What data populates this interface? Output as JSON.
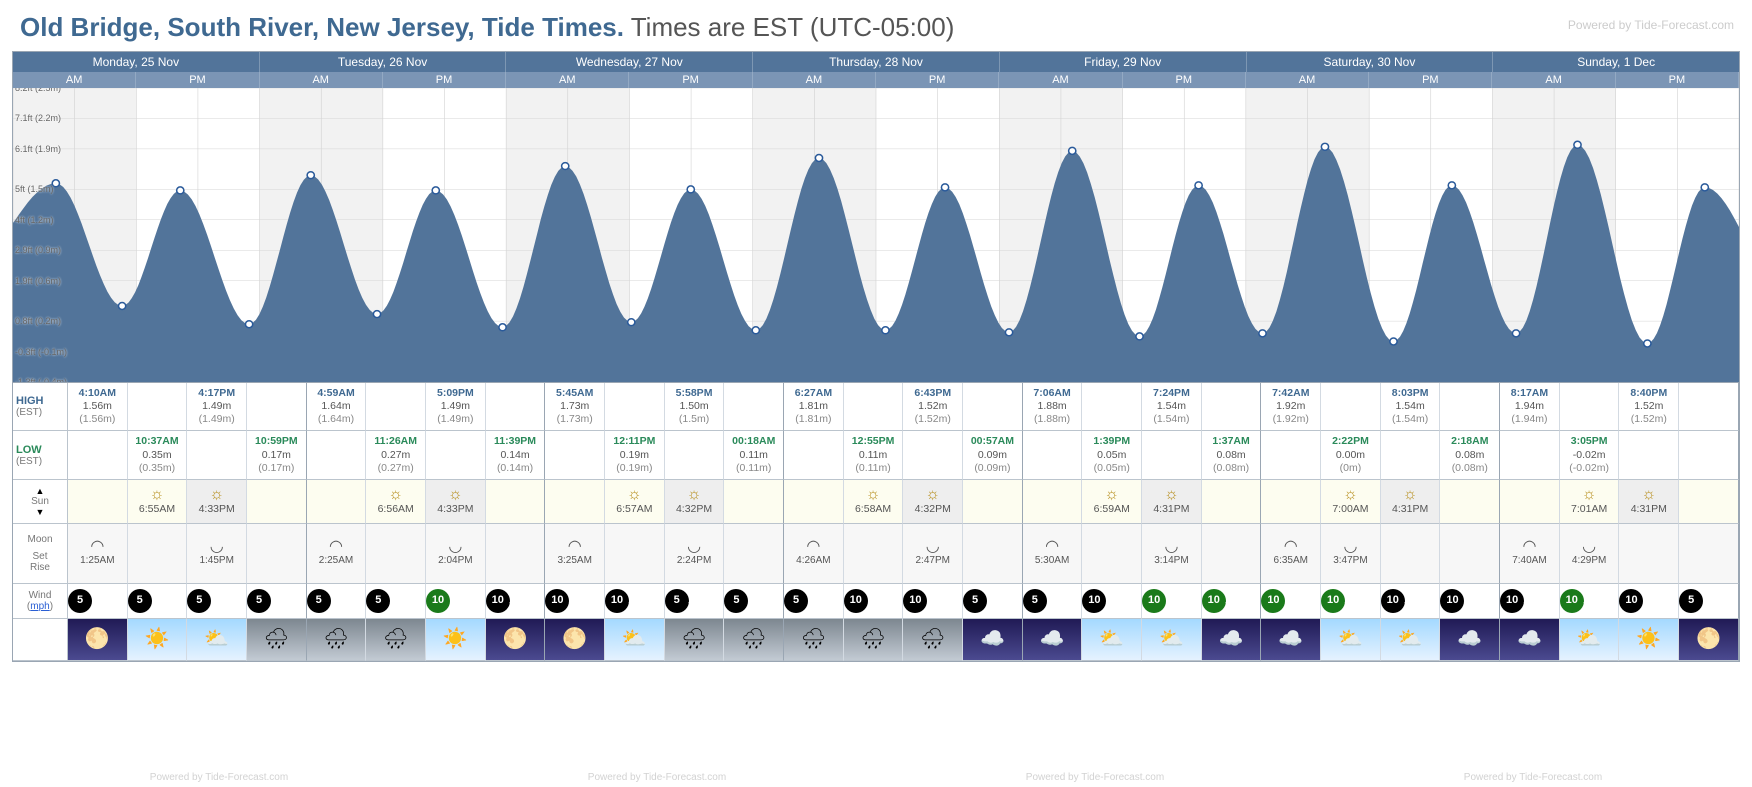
{
  "title": {
    "main": "Old Bridge, South River, New Jersey, Tide Times.",
    "sub": "Times are EST (UTC-05:00)"
  },
  "watermark": "Powered by Tide-Forecast.com",
  "days": [
    {
      "label": "Monday, 25 Nov"
    },
    {
      "label": "Tuesday, 26 Nov"
    },
    {
      "label": "Wednesday, 27 Nov"
    },
    {
      "label": "Thursday, 28 Nov"
    },
    {
      "label": "Friday, 29 Nov"
    },
    {
      "label": "Saturday, 30 Nov"
    },
    {
      "label": "Sunday, 1 Dec"
    }
  ],
  "ampm": [
    "AM",
    "PM"
  ],
  "yAxis": [
    {
      "ft": "8.2ft",
      "m": "(2.5m)",
      "v": 2.5
    },
    {
      "ft": "7.1ft",
      "m": "(2.2m)",
      "v": 2.2
    },
    {
      "ft": "6.1ft",
      "m": "(1.9m)",
      "v": 1.9
    },
    {
      "ft": "5ft",
      "m": "(1.5m)",
      "v": 1.5
    },
    {
      "ft": "4ft",
      "m": "(1.2m)",
      "v": 1.2
    },
    {
      "ft": "2.9ft",
      "m": "(0.9m)",
      "v": 0.9
    },
    {
      "ft": "1.9ft",
      "m": "(0.6m)",
      "v": 0.6
    },
    {
      "ft": "0.8ft",
      "m": "(0.2m)",
      "v": 0.2
    },
    {
      "ft": "-0.3ft",
      "m": "(-0.1m)",
      "v": -0.1
    },
    {
      "ft": "-1.3ft",
      "m": "(-0.4m)",
      "v": -0.4
    }
  ],
  "chart": {
    "yMin": -0.4,
    "yMax": 2.5,
    "curveColor": "#52749a",
    "dotColor": "#ffffff",
    "dotStroke": "#2a5a9a",
    "amBand": "#e5e5e5"
  },
  "tidePoints": [
    {
      "day": 0,
      "hr": 4.17,
      "m": 1.56,
      "type": "H"
    },
    {
      "day": 0,
      "hr": 10.62,
      "m": 0.35,
      "type": "L"
    },
    {
      "day": 0,
      "hr": 16.28,
      "m": 1.49,
      "type": "H"
    },
    {
      "day": 0,
      "hr": 22.98,
      "m": 0.17,
      "type": "L"
    },
    {
      "day": 1,
      "hr": 4.98,
      "m": 1.64,
      "type": "H"
    },
    {
      "day": 1,
      "hr": 11.43,
      "m": 0.27,
      "type": "L"
    },
    {
      "day": 1,
      "hr": 17.15,
      "m": 1.49,
      "type": "H"
    },
    {
      "day": 1,
      "hr": 23.65,
      "m": 0.14,
      "type": "L"
    },
    {
      "day": 2,
      "hr": 5.75,
      "m": 1.73,
      "type": "H"
    },
    {
      "day": 2,
      "hr": 12.18,
      "m": 0.19,
      "type": "L"
    },
    {
      "day": 2,
      "hr": 17.97,
      "m": 1.5,
      "type": "H"
    },
    {
      "day": 3,
      "hr": 0.3,
      "m": 0.11,
      "type": "L"
    },
    {
      "day": 3,
      "hr": 6.45,
      "m": 1.81,
      "type": "H"
    },
    {
      "day": 3,
      "hr": 12.92,
      "m": 0.11,
      "type": "L"
    },
    {
      "day": 3,
      "hr": 18.72,
      "m": 1.52,
      "type": "H"
    },
    {
      "day": 4,
      "hr": 0.95,
      "m": 0.09,
      "type": "L"
    },
    {
      "day": 4,
      "hr": 7.1,
      "m": 1.88,
      "type": "H"
    },
    {
      "day": 4,
      "hr": 13.65,
      "m": 0.05,
      "type": "L"
    },
    {
      "day": 4,
      "hr": 19.4,
      "m": 1.54,
      "type": "H"
    },
    {
      "day": 5,
      "hr": 1.62,
      "m": 0.08,
      "type": "L"
    },
    {
      "day": 5,
      "hr": 7.7,
      "m": 1.92,
      "type": "H"
    },
    {
      "day": 5,
      "hr": 14.37,
      "m": 0.0,
      "type": "L"
    },
    {
      "day": 5,
      "hr": 20.05,
      "m": 1.54,
      "type": "H"
    },
    {
      "day": 6,
      "hr": 2.3,
      "m": 0.08,
      "type": "L"
    },
    {
      "day": 6,
      "hr": 8.28,
      "m": 1.94,
      "type": "H"
    },
    {
      "day": 6,
      "hr": 15.08,
      "m": -0.02,
      "type": "L"
    },
    {
      "day": 6,
      "hr": 20.67,
      "m": 1.52,
      "type": "H"
    }
  ],
  "rowLabels": {
    "high": "HIGH",
    "low": "LOW",
    "tz": "(EST)",
    "sun": "Sun",
    "moon": "Moon",
    "moonSet": "Set",
    "moonRise": "Rise",
    "wind": "Wind",
    "windUnit": "mph"
  },
  "highLow": {
    "high": [
      [
        "4:10AM",
        "1.56m",
        "(1.56m)"
      ],
      null,
      [
        "4:17PM",
        "1.49m",
        "(1.49m)"
      ],
      null,
      [
        "4:59AM",
        "1.64m",
        "(1.64m)"
      ],
      null,
      [
        "5:09PM",
        "1.49m",
        "(1.49m)"
      ],
      null,
      [
        "5:45AM",
        "1.73m",
        "(1.73m)"
      ],
      null,
      [
        "5:58PM",
        "1.50m",
        "(1.5m)"
      ],
      null,
      [
        "6:27AM",
        "1.81m",
        "(1.81m)"
      ],
      null,
      [
        "6:43PM",
        "1.52m",
        "(1.52m)"
      ],
      null,
      [
        "7:06AM",
        "1.88m",
        "(1.88m)"
      ],
      null,
      [
        "7:24PM",
        "1.54m",
        "(1.54m)"
      ],
      null,
      [
        "7:42AM",
        "1.92m",
        "(1.92m)"
      ],
      null,
      [
        "8:03PM",
        "1.54m",
        "(1.54m)"
      ],
      null,
      [
        "8:17AM",
        "1.94m",
        "(1.94m)"
      ],
      null,
      [
        "8:40PM",
        "1.52m",
        "(1.52m)"
      ],
      null
    ],
    "low": [
      null,
      [
        "10:37AM",
        "0.35m",
        "(0.35m)"
      ],
      null,
      [
        "10:59PM",
        "0.17m",
        "(0.17m)"
      ],
      null,
      [
        "11:26AM",
        "0.27m",
        "(0.27m)"
      ],
      null,
      [
        "11:39PM",
        "0.14m",
        "(0.14m)"
      ],
      null,
      [
        "12:11PM",
        "0.19m",
        "(0.19m)"
      ],
      null,
      [
        "00:18AM",
        "0.11m",
        "(0.11m)"
      ],
      null,
      [
        "12:55PM",
        "0.11m",
        "(0.11m)"
      ],
      null,
      [
        "00:57AM",
        "0.09m",
        "(0.09m)"
      ],
      null,
      [
        "1:39PM",
        "0.05m",
        "(0.05m)"
      ],
      null,
      [
        "1:37AM",
        "0.08m",
        "(0.08m)"
      ],
      null,
      [
        "2:22PM",
        "0.00m",
        "(0m)"
      ],
      null,
      [
        "2:18AM",
        "0.08m",
        "(0.08m)"
      ],
      null,
      [
        "3:05PM",
        "-0.02m",
        "(-0.02m)"
      ],
      null,
      null
    ]
  },
  "sun": [
    null,
    [
      "rise",
      "6:55AM"
    ],
    [
      "set",
      "4:33PM"
    ],
    null,
    null,
    [
      "rise",
      "6:56AM"
    ],
    [
      "set",
      "4:33PM"
    ],
    null,
    null,
    [
      "rise",
      "6:57AM"
    ],
    [
      "set",
      "4:32PM"
    ],
    null,
    null,
    [
      "rise",
      "6:58AM"
    ],
    [
      "set",
      "4:32PM"
    ],
    null,
    null,
    [
      "rise",
      "6:59AM"
    ],
    [
      "set",
      "4:31PM"
    ],
    null,
    null,
    [
      "rise",
      "7:00AM"
    ],
    [
      "set",
      "4:31PM"
    ],
    null,
    null,
    [
      "rise",
      "7:01AM"
    ],
    [
      "set",
      "4:31PM"
    ],
    null
  ],
  "moon": [
    [
      "set",
      "1:25AM"
    ],
    null,
    [
      "rise",
      "1:45PM"
    ],
    null,
    [
      "set",
      "2:25AM"
    ],
    null,
    [
      "rise",
      "2:04PM"
    ],
    null,
    [
      "set",
      "3:25AM"
    ],
    null,
    [
      "rise",
      "2:24PM"
    ],
    null,
    [
      "set",
      "4:26AM"
    ],
    null,
    [
      "rise",
      "2:47PM"
    ],
    null,
    [
      "set",
      "5:30AM"
    ],
    null,
    [
      "rise",
      "3:14PM"
    ],
    null,
    [
      "set",
      "6:35AM"
    ],
    [
      "rise",
      "3:47PM"
    ],
    null,
    null,
    [
      "set",
      "7:40AM"
    ],
    [
      "rise",
      "4:29PM"
    ],
    null,
    null
  ],
  "wind": [
    {
      "v": 5,
      "g": false,
      "a": "↓"
    },
    {
      "v": 5,
      "g": false,
      "a": "↓"
    },
    {
      "v": 5,
      "g": false,
      "a": "↗"
    },
    {
      "v": 5,
      "g": false,
      "a": "↑"
    },
    {
      "v": 5,
      "g": false,
      "a": "↑"
    },
    {
      "v": 5,
      "g": false,
      "a": "→"
    },
    {
      "v": 10,
      "g": true,
      "a": "↘"
    },
    {
      "v": 10,
      "g": false,
      "a": "→"
    },
    {
      "v": 10,
      "g": false,
      "a": "→"
    },
    {
      "v": 10,
      "g": false,
      "a": "→"
    },
    {
      "v": 5,
      "g": false,
      "a": "→"
    },
    {
      "v": 5,
      "g": false,
      "a": "↑"
    },
    {
      "v": 5,
      "g": false,
      "a": "↑"
    },
    {
      "v": 10,
      "g": false,
      "a": "↘"
    },
    {
      "v": 10,
      "g": false,
      "a": "↘"
    },
    {
      "v": 5,
      "g": false,
      "a": "↘"
    },
    {
      "v": 5,
      "g": false,
      "a": "↓"
    },
    {
      "v": 10,
      "g": false,
      "a": "→"
    },
    {
      "v": 10,
      "g": true,
      "a": "↘"
    },
    {
      "v": 10,
      "g": true,
      "a": "→"
    },
    {
      "v": 10,
      "g": true,
      "a": "→"
    },
    {
      "v": 10,
      "g": true,
      "a": "→"
    },
    {
      "v": 10,
      "g": false,
      "a": "→"
    },
    {
      "v": 10,
      "g": false,
      "a": "→"
    },
    {
      "v": 10,
      "g": false,
      "a": "→"
    },
    {
      "v": 10,
      "g": true,
      "a": "→"
    },
    {
      "v": 10,
      "g": false,
      "a": "→"
    },
    {
      "v": 5,
      "g": false,
      "a": "↘"
    }
  ],
  "weather": [
    "night-clear",
    "sunny",
    "partly",
    "rain",
    "rain",
    "rain",
    "sunny",
    "night-clear",
    "night-clear",
    "partly",
    "rain",
    "rain",
    "rain",
    "rain",
    "rain",
    "cloudy-night",
    "cloudy-night",
    "partly",
    "partly",
    "cloudy-night",
    "cloudy-night",
    "partly",
    "partly",
    "cloudy-night",
    "cloudy-night",
    "partly",
    "sunny",
    "night-clear"
  ]
}
